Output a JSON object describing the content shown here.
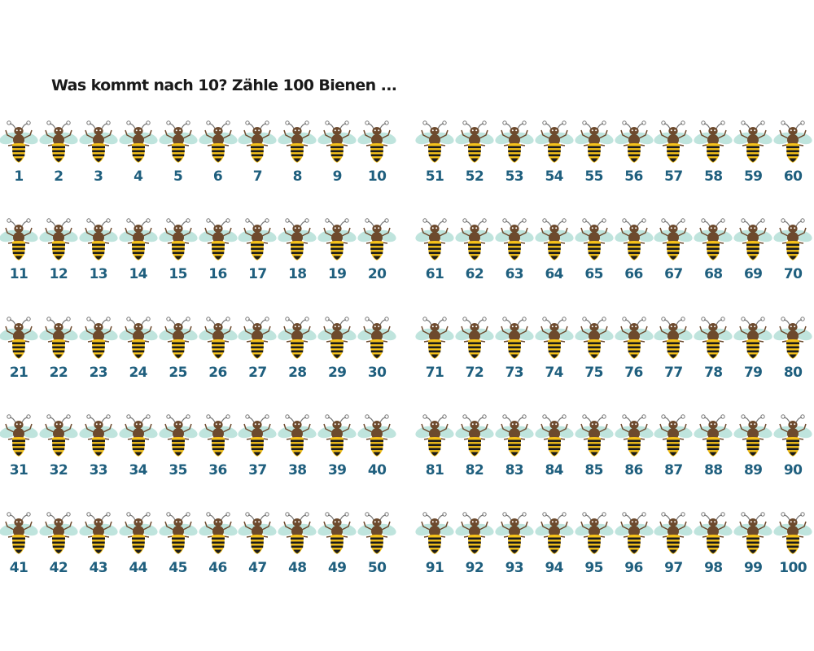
{
  "title": "Was kommt nach 10? Zähle 100 Bienen ...",
  "bee_icon": "bee-icon",
  "colors": {
    "wing": "#bfe4dd",
    "body": "#6d4a2d",
    "stripe_yellow": "#f5c21b",
    "stripe_dark": "#1b1b1b",
    "antenna": "#777777",
    "number": "#1f5f7e",
    "title": "#1a1a1a"
  },
  "numbers": [
    1,
    2,
    3,
    4,
    5,
    6,
    7,
    8,
    9,
    10,
    11,
    12,
    13,
    14,
    15,
    16,
    17,
    18,
    19,
    20,
    21,
    22,
    23,
    24,
    25,
    26,
    27,
    28,
    29,
    30,
    31,
    32,
    33,
    34,
    35,
    36,
    37,
    38,
    39,
    40,
    41,
    42,
    43,
    44,
    45,
    46,
    47,
    48,
    49,
    50,
    51,
    52,
    53,
    54,
    55,
    56,
    57,
    58,
    59,
    60,
    61,
    62,
    63,
    64,
    65,
    66,
    67,
    68,
    69,
    70,
    71,
    72,
    73,
    74,
    75,
    76,
    77,
    78,
    79,
    80,
    81,
    82,
    83,
    84,
    85,
    86,
    87,
    88,
    89,
    90,
    91,
    92,
    93,
    94,
    95,
    96,
    97,
    98,
    99,
    100
  ]
}
